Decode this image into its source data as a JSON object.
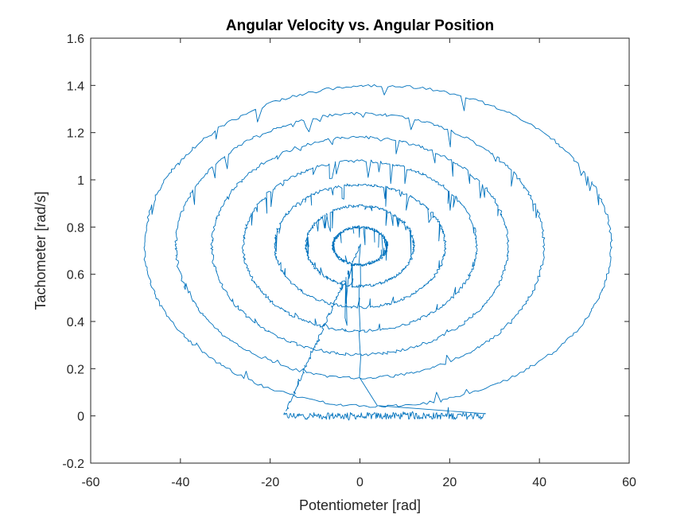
{
  "chart_data": {
    "type": "line",
    "title": "Angular Velocity vs. Angular Position",
    "xlabel": "Potentiometer [rad]",
    "ylabel": "Tachometer [rad/s]",
    "xlim": [
      -60,
      60
    ],
    "ylim": [
      -0.2,
      1.6
    ],
    "xticks": [
      -60,
      -40,
      -20,
      0,
      20,
      40,
      60
    ],
    "yticks": [
      -0.2,
      0,
      0.2,
      0.4,
      0.6,
      0.8,
      1,
      1.2,
      1.4,
      1.6
    ],
    "xtick_labels": [
      "-60",
      "-40",
      "-20",
      "0",
      "20",
      "40",
      "60"
    ],
    "ytick_labels": [
      "-0.2",
      "0",
      "0.2",
      "0.4",
      "0.6",
      "0.8",
      "1",
      "1.2",
      "1.4",
      "1.6"
    ],
    "grid": false,
    "legend": "none",
    "series": [
      {
        "color": "#0072BD",
        "segments": [
          {
            "kind": "flat",
            "x_start": -17,
            "x_end": 28,
            "y": 0.0,
            "noise": 0.015
          },
          {
            "kind": "ellipse",
            "cx": 4,
            "cy": 0.72,
            "rx": 52,
            "ry": 0.68,
            "note": "outer loop, right edge near x=56"
          },
          {
            "kind": "ellipse",
            "cx": 0,
            "cy": 0.72,
            "rx": 41,
            "ry": 0.56
          },
          {
            "kind": "ellipse",
            "cx": 0,
            "cy": 0.72,
            "rx": 33,
            "ry": 0.46
          },
          {
            "kind": "ellipse",
            "cx": 0,
            "cy": 0.72,
            "rx": 26,
            "ry": 0.36
          },
          {
            "kind": "ellipse",
            "cx": 0,
            "cy": 0.72,
            "rx": 19,
            "ry": 0.26
          },
          {
            "kind": "ellipse",
            "cx": 0,
            "cy": 0.72,
            "rx": 12,
            "ry": 0.17
          },
          {
            "kind": "ellipse",
            "cx": 0,
            "cy": 0.72,
            "rx": 6,
            "ry": 0.08
          },
          {
            "kind": "line",
            "x": [
              0,
              -16.5
            ],
            "y": [
              0.72,
              0.02
            ],
            "note": "converging tail to start point"
          }
        ]
      }
    ]
  }
}
